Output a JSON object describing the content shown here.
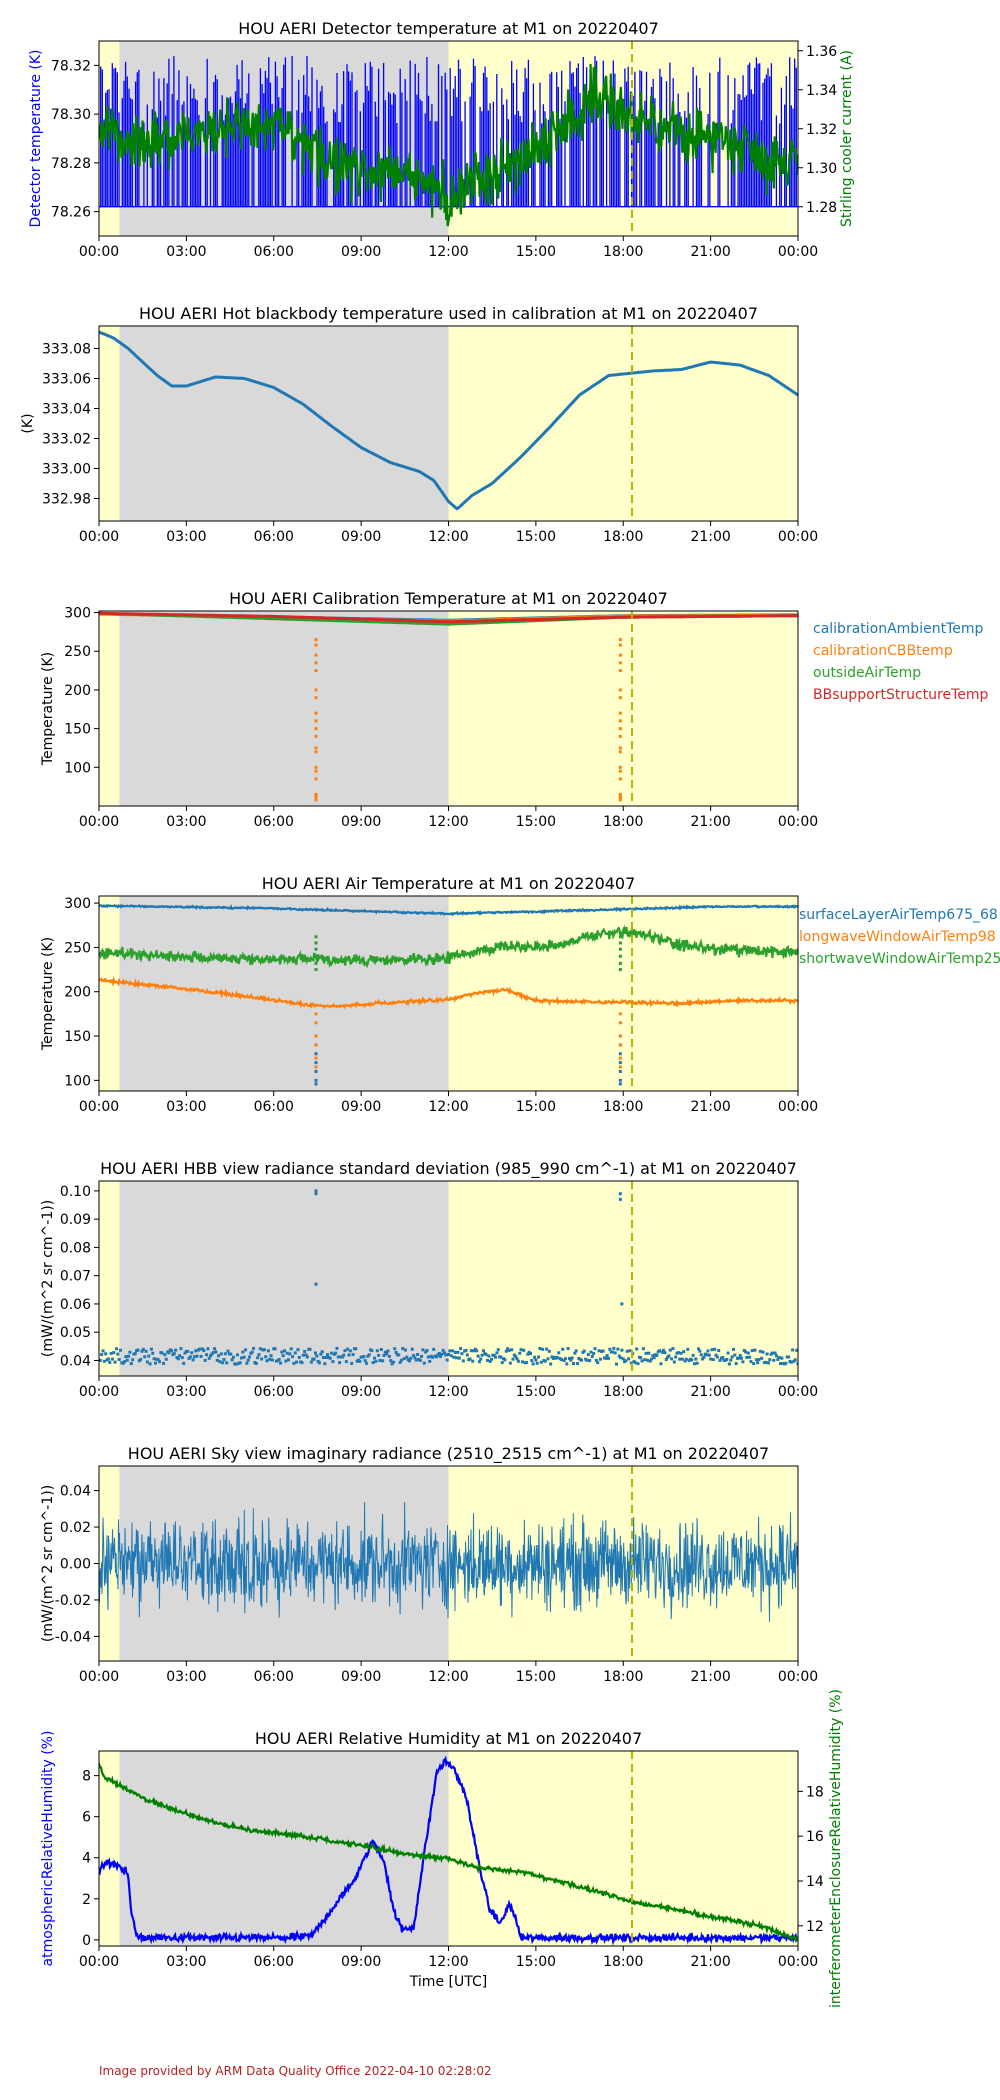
{
  "footer": "Image provided by ARM Data Quality Office 2022-04-10 02:28:02",
  "colors": {
    "blue": "#0000ff",
    "green": "#008000",
    "c0": "#1f77b4",
    "c1": "#ff7f0e",
    "c2": "#2ca02c",
    "c3": "#d62728",
    "night": "#d9d9d9",
    "day": "#ffffcc",
    "marker": "#b5b500",
    "footer": "#b22222"
  },
  "x_axis": {
    "ticks": [
      "00:00",
      "03:00",
      "06:00",
      "09:00",
      "12:00",
      "15:00",
      "18:00",
      "21:00",
      "00:00"
    ],
    "label": "Time [UTC]",
    "range_hours": [
      0,
      24
    ]
  },
  "shading": {
    "day_early_hours": [
      0,
      0.7
    ],
    "night_hours": [
      0.7,
      12
    ],
    "day_late_hours": [
      12,
      24
    ],
    "marker_hour": 18.3
  },
  "chart_data": [
    {
      "id": "p1",
      "type": "line",
      "title": "HOU AERI Detector temperature at M1 on 20220407",
      "ylabel": "Detector temperature (K)",
      "ylabel_color": "blue",
      "ylim": [
        78.25,
        78.33
      ],
      "yticks": [
        78.26,
        78.28,
        78.3,
        78.32
      ],
      "tick_decimals": 2,
      "y2label": "Stirling cooler current (A)",
      "y2label_color": "green",
      "y2lim": [
        1.265,
        1.365
      ],
      "y2ticks": [
        1.28,
        1.3,
        1.32,
        1.34,
        1.36
      ],
      "y2tick_decimals": 2,
      "series": [
        {
          "color": "blue",
          "axis": "left",
          "style": "spiky",
          "base": 78.262,
          "top": 78.324,
          "x": [
            0,
            24
          ],
          "y": [
            78.262,
            78.262
          ]
        },
        {
          "color": "green",
          "axis": "right",
          "style": "noisy",
          "noise": 0.012,
          "x": [
            0,
            0.5,
            1.5,
            3,
            5,
            6.5,
            7.5,
            9,
            10.5,
            11.5,
            12,
            12.5,
            13.5,
            14.5,
            15.5,
            16.5,
            17,
            17.5,
            18.5,
            20,
            21.5,
            22.5,
            23,
            24
          ],
          "y": [
            1.322,
            1.318,
            1.312,
            1.318,
            1.322,
            1.318,
            1.305,
            1.3,
            1.296,
            1.29,
            1.282,
            1.29,
            1.298,
            1.305,
            1.316,
            1.328,
            1.34,
            1.335,
            1.322,
            1.318,
            1.315,
            1.31,
            1.302,
            1.305
          ]
        }
      ]
    },
    {
      "id": "p2",
      "type": "scatter",
      "title": "HOU AERI Hot blackbody temperature used in calibration at M1 on 20220407",
      "ylabel": "(K)",
      "ylim": [
        332.965,
        333.095
      ],
      "yticks": [
        332.98,
        333.0,
        333.02,
        333.04,
        333.06,
        333.08
      ],
      "tick_decimals": 2,
      "series": [
        {
          "color": "c0",
          "style": "smooth",
          "x": [
            0,
            0.5,
            1,
            1.5,
            2,
            2.5,
            3,
            3.5,
            4,
            5,
            6,
            7,
            8,
            9,
            10,
            11,
            11.5,
            12,
            12.3,
            12.8,
            13.5,
            14.5,
            15.5,
            16.5,
            17.5,
            18,
            19,
            20,
            21,
            22,
            23,
            24
          ],
          "y": [
            333.091,
            333.087,
            333.08,
            333.071,
            333.062,
            333.055,
            333.055,
            333.058,
            333.061,
            333.06,
            333.054,
            333.043,
            333.028,
            333.014,
            333.004,
            332.998,
            332.992,
            332.978,
            332.973,
            332.982,
            332.99,
            333.008,
            333.028,
            333.049,
            333.062,
            333.063,
            333.065,
            333.066,
            333.071,
            333.069,
            333.062,
            333.049
          ]
        }
      ]
    },
    {
      "id": "p3",
      "type": "scatter",
      "title": "HOU AERI Calibration Temperature at M1 on 20220407",
      "ylabel": "Temperature (K)",
      "ylim": [
        50,
        302
      ],
      "yticks": [
        100,
        150,
        200,
        250,
        300
      ],
      "tick_decimals": 0,
      "legend": [
        "calibrationAmbientTemp",
        "calibrationCBBtemp",
        "outsideAirTemp",
        "BBsupportStructureTemp"
      ],
      "series": [
        {
          "name": "calibrationAmbientTemp",
          "color": "c0",
          "x": [
            0,
            12,
            18,
            24
          ],
          "y": [
            298.5,
            290,
            296,
            297
          ]
        },
        {
          "name": "calibrationCBBtemp",
          "color": "c1",
          "x": [
            0,
            12,
            18,
            24
          ],
          "y": [
            298,
            289,
            295.5,
            296.5
          ],
          "outliers": {
            "hours": [
              7.45,
              17.9
            ],
            "values": [
              265,
              258,
              245,
              235,
              225,
              200,
              190,
              170,
              160,
              150,
              140,
              125,
              120,
              100,
              95,
              85,
              65,
              62,
              60,
              58
            ]
          }
        },
        {
          "name": "outsideAirTemp",
          "color": "c2",
          "x": [
            0,
            12,
            18,
            24
          ],
          "y": [
            299,
            285,
            294,
            296
          ]
        },
        {
          "name": "BBsupportStructureTemp",
          "color": "c3",
          "x": [
            0,
            6,
            12,
            18,
            24
          ],
          "y": [
            299,
            295,
            288,
            294,
            296
          ]
        }
      ]
    },
    {
      "id": "p4",
      "type": "scatter",
      "title": "HOU AERI Air Temperature at M1 on 20220407",
      "ylabel": "Temperature (K)",
      "ylim": [
        88,
        308
      ],
      "yticks": [
        100,
        150,
        200,
        250,
        300
      ],
      "tick_decimals": 0,
      "legend": [
        "surfaceLayerAirTemp675_68",
        "longwaveWindowAirTemp98",
        "shortwaveWindowAirTemp25"
      ],
      "series": [
        {
          "name": "surfaceLayerAirTemp675_68",
          "color": "c0",
          "style": "noisy",
          "noise": 0.8,
          "x": [
            0,
            6,
            12,
            18,
            21,
            24
          ],
          "y": [
            297,
            294,
            288,
            293,
            296,
            296
          ],
          "outliers": {
            "hours": [
              7.45,
              17.9
            ],
            "values": [
              150,
              140,
              130,
              120,
              110,
              100,
              96
            ]
          }
        },
        {
          "name": "longwaveWindowAirTemp98",
          "color": "c1",
          "style": "noisy",
          "noise": 1.5,
          "x": [
            0,
            1,
            3,
            5,
            7,
            8,
            10,
            12,
            13,
            14,
            15,
            17,
            18,
            20,
            22,
            24
          ],
          "y": [
            213,
            210,
            203,
            195,
            186,
            183,
            188,
            191,
            199,
            202,
            190,
            188,
            188,
            187,
            190,
            190
          ],
          "outliers": {
            "hours": [
              7.45,
              17.9
            ],
            "values": [
              175,
              165,
              150,
              140,
              125,
              115
            ]
          }
        },
        {
          "name": "shortwaveWindowAirTemp25",
          "color": "c2",
          "style": "noisy",
          "noise": 5,
          "x": [
            0,
            2,
            4,
            6,
            8,
            10,
            12,
            13,
            14,
            15,
            16,
            17,
            18,
            19,
            20,
            22,
            24
          ],
          "y": [
            244,
            241,
            238,
            237,
            236,
            235,
            238,
            246,
            252,
            250,
            255,
            264,
            268,
            262,
            252,
            246,
            244
          ],
          "outliers": {
            "hours": [
              7.45,
              17.9
            ],
            "values": [
              262,
              255,
              248,
              240,
              232,
              225
            ]
          }
        }
      ]
    },
    {
      "id": "p5",
      "type": "scatter",
      "title": "HOU AERI HBB view radiance standard deviation (985_990 cm^-1) at M1 on 20220407",
      "ylabel": "(mW/(m^2 sr cm^-1))",
      "ylim": [
        0.0345,
        0.1035
      ],
      "yticks": [
        0.04,
        0.05,
        0.06,
        0.07,
        0.08,
        0.09,
        0.1
      ],
      "tick_decimals": 2,
      "series": [
        {
          "color": "c0",
          "style": "dots",
          "base": 0.0415,
          "spread": 0.0028,
          "x": [
            0,
            24
          ],
          "y": [
            0.0415,
            0.0415
          ],
          "outliers": {
            "points": [
              [
                7.45,
                0.1
              ],
              [
                7.45,
                0.099
              ],
              [
                7.45,
                0.067
              ],
              [
                17.9,
                0.099
              ],
              [
                17.9,
                0.097
              ],
              [
                17.95,
                0.06
              ]
            ]
          }
        }
      ]
    },
    {
      "id": "p6",
      "type": "line",
      "title": "HOU AERI Sky view imaginary radiance (2510_2515 cm^-1) at M1 on 20220407",
      "ylabel": "(mW/(m^2 sr cm^-1))",
      "ylim": [
        -0.0535,
        0.0535
      ],
      "yticks": [
        -0.04,
        -0.02,
        0.0,
        0.02,
        0.04
      ],
      "tick_decimals": 2,
      "series": [
        {
          "color": "c0",
          "style": "noise",
          "amplitude": 0.048,
          "x": [
            0,
            24
          ],
          "y": [
            0,
            0
          ]
        }
      ]
    },
    {
      "id": "p7",
      "type": "line",
      "title": "HOU AERI Relative Humidity at M1 on 20220407",
      "ylabel": "atmosphericRelativeHumidity (%)",
      "ylabel_color": "blue",
      "ylim": [
        -0.3,
        9.2
      ],
      "yticks": [
        0,
        2,
        4,
        6,
        8
      ],
      "tick_decimals": 0,
      "y2label": "interferometerEnclosureRelativeHumidity (%)",
      "y2label_color": "green",
      "y2lim": [
        11.1,
        19.8
      ],
      "y2ticks": [
        12,
        14,
        16,
        18
      ],
      "y2tick_decimals": 0,
      "xlabel": "Time [UTC]",
      "series": [
        {
          "color": "blue",
          "axis": "left",
          "style": "noisy",
          "noise": 0.15,
          "x": [
            0,
            0.3,
            0.7,
            1,
            1.1,
            1.3,
            6.5,
            7.3,
            8,
            8.8,
            9.4,
            9.8,
            10.1,
            10.4,
            10.8,
            11.2,
            11.6,
            11.9,
            12.2,
            12.6,
            13,
            13.4,
            13.8,
            14.1,
            14.3,
            14.5,
            24
          ],
          "y": [
            3.4,
            3.8,
            3.6,
            3.2,
            1.5,
            0.1,
            0.1,
            0.2,
            1.5,
            3.0,
            4.8,
            3.8,
            1.5,
            0.5,
            0.6,
            4.5,
            8.2,
            8.7,
            8.3,
            7.0,
            4.0,
            1.5,
            0.8,
            1.8,
            1.0,
            0.1,
            0.1
          ]
        },
        {
          "color": "green",
          "axis": "right",
          "style": "noisy",
          "noise": 0.08,
          "x": [
            0,
            0.2,
            0.7,
            1.5,
            2.5,
            4,
            5.5,
            7,
            9,
            10.5,
            12,
            13,
            14.5,
            16,
            17.5,
            18.5,
            19.5,
            21,
            22,
            23,
            23.5,
            24
          ],
          "y": [
            19.2,
            18.6,
            18.3,
            17.7,
            17.2,
            16.6,
            16.2,
            16.0,
            15.6,
            15.2,
            15.0,
            14.6,
            14.4,
            13.9,
            13.4,
            13.0,
            12.8,
            12.4,
            12.2,
            11.9,
            11.6,
            11.4
          ]
        }
      ]
    }
  ]
}
